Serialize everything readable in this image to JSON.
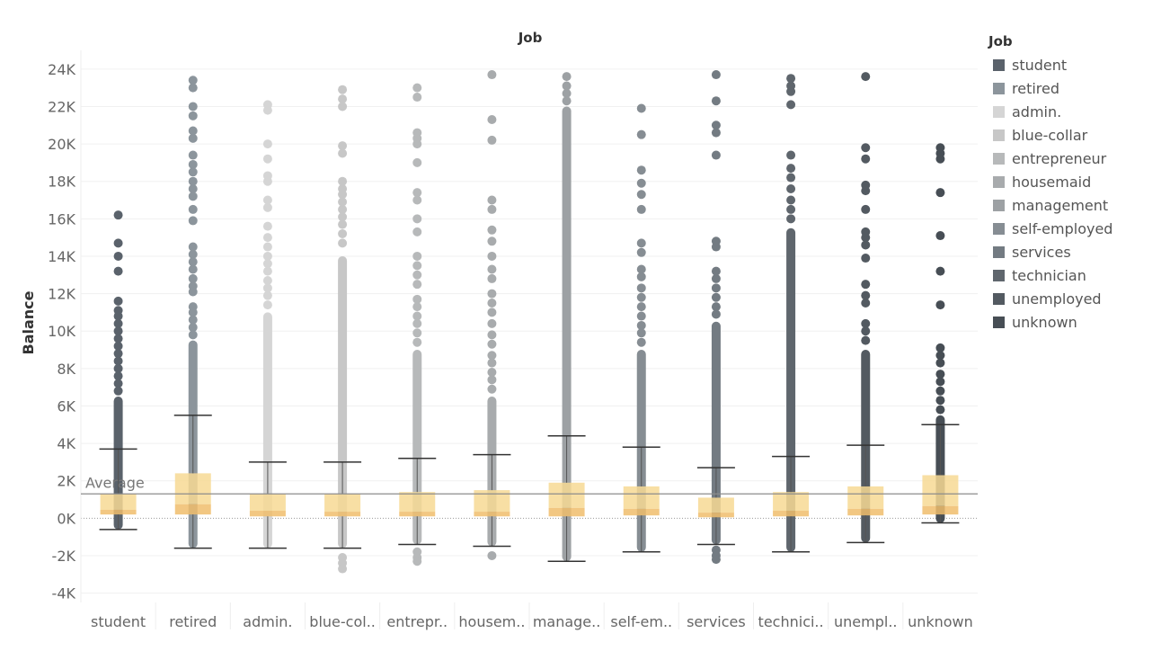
{
  "chart_data": {
    "type": "boxplot",
    "title": "Job",
    "ylabel": "Balance",
    "ylim": [
      -4500,
      25000
    ],
    "yticks": [
      -4000,
      -2000,
      0,
      2000,
      4000,
      6000,
      8000,
      10000,
      12000,
      14000,
      16000,
      18000,
      20000,
      22000,
      24000
    ],
    "ytick_labels": [
      "-4K",
      "-2K",
      "0K",
      "2K",
      "4K",
      "6K",
      "8K",
      "10K",
      "12K",
      "14K",
      "16K",
      "18K",
      "20K",
      "22K",
      "24K"
    ],
    "grid": true,
    "reference_line": {
      "label": "Average",
      "value": 1300
    },
    "legend_title": "Job",
    "legend_position": "right",
    "categories": [
      {
        "name": "student",
        "axis_label": "student",
        "color": "#5a626b",
        "whisker_low": -600,
        "q1": 200,
        "median": 450,
        "q3": 1300,
        "whisker_high": 3700,
        "dense_outliers_to": 6500,
        "outliers": [
          6800,
          7200,
          7600,
          8000,
          8400,
          8800,
          9200,
          9600,
          10000,
          10400,
          10800,
          11100,
          11600,
          13200,
          14000,
          14700,
          16200
        ]
      },
      {
        "name": "retired",
        "axis_label": "retired",
        "color": "#8c959c",
        "whisker_low": -1600,
        "q1": 200,
        "median": 750,
        "q3": 2400,
        "whisker_high": 5500,
        "dense_outliers_to": 9500,
        "outliers": [
          9800,
          10200,
          10600,
          11000,
          11300,
          12100,
          12400,
          12800,
          13300,
          13700,
          14100,
          14500,
          15900,
          16500,
          17200,
          17600,
          18000,
          18500,
          18900,
          19400,
          20300,
          20700,
          21500,
          22000,
          23000,
          23400
        ]
      },
      {
        "name": "admin.",
        "axis_label": "admin.",
        "color": "#d5d5d5",
        "whisker_low": -1600,
        "q1": 100,
        "median": 400,
        "q3": 1300,
        "whisker_high": 3000,
        "dense_outliers_to": 11000,
        "outliers": [
          11400,
          11900,
          12300,
          12700,
          13200,
          13600,
          14000,
          14500,
          15000,
          15600,
          16600,
          17000,
          18000,
          18300,
          19200,
          20000,
          21800,
          22100
        ]
      },
      {
        "name": "blue-collar",
        "axis_label": "blue-col..",
        "color": "#c7c7c7",
        "whisker_low": -1600,
        "q1": 100,
        "median": 350,
        "q3": 1300,
        "whisker_high": 3000,
        "dense_outliers_to": 14000,
        "outliers": [
          14700,
          15200,
          15700,
          16100,
          16500,
          16900,
          17300,
          17600,
          18000,
          19500,
          19900,
          22000,
          22400,
          22900,
          -2100,
          -2400,
          -2700
        ]
      },
      {
        "name": "entrepreneur",
        "axis_label": "entrepr..",
        "color": "#b7b9ba",
        "whisker_low": -1400,
        "q1": 100,
        "median": 350,
        "q3": 1400,
        "whisker_high": 3200,
        "dense_outliers_to": 9000,
        "outliers": [
          9400,
          9900,
          10400,
          10800,
          11300,
          11700,
          12500,
          13000,
          13500,
          14000,
          15300,
          16000,
          17000,
          17400,
          19000,
          20000,
          20300,
          20600,
          22500,
          23000,
          -1800,
          -2100,
          -2300
        ]
      },
      {
        "name": "housemaid",
        "axis_label": "housem..",
        "color": "#a8abad",
        "whisker_low": -1500,
        "q1": 100,
        "median": 350,
        "q3": 1500,
        "whisker_high": 3400,
        "dense_outliers_to": 6500,
        "outliers": [
          6900,
          7400,
          7800,
          8300,
          8700,
          9300,
          9800,
          10400,
          11000,
          11500,
          12000,
          12800,
          13300,
          14000,
          14800,
          15400,
          16500,
          17000,
          20200,
          21300,
          23700,
          -2000
        ]
      },
      {
        "name": "management",
        "axis_label": "manage..",
        "color": "#9da1a4",
        "whisker_low": -2300,
        "q1": 100,
        "median": 550,
        "q3": 1900,
        "whisker_high": 4400,
        "dense_outliers_to": 22000,
        "outliers": [
          22300,
          22700,
          23100,
          23600
        ]
      },
      {
        "name": "self-employed",
        "axis_label": "self-em..",
        "color": "#868d93",
        "whisker_low": -1800,
        "q1": 150,
        "median": 500,
        "q3": 1700,
        "whisker_high": 3800,
        "dense_outliers_to": 9000,
        "outliers": [
          9400,
          9900,
          10300,
          10800,
          11300,
          11800,
          12300,
          12900,
          13300,
          14200,
          14700,
          16500,
          17300,
          17900,
          18600,
          20500,
          21900
        ]
      },
      {
        "name": "services",
        "axis_label": "services",
        "color": "#737b82",
        "whisker_low": -1400,
        "q1": 50,
        "median": 300,
        "q3": 1100,
        "whisker_high": 2700,
        "dense_outliers_to": 10500,
        "outliers": [
          10900,
          11300,
          11800,
          12300,
          12800,
          13200,
          14500,
          14800,
          19400,
          20600,
          21000,
          22300,
          23700,
          -1700,
          -2000,
          -2200
        ]
      },
      {
        "name": "technician",
        "axis_label": "technici..",
        "color": "#5f666d",
        "whisker_low": -1800,
        "q1": 100,
        "median": 400,
        "q3": 1400,
        "whisker_high": 3300,
        "dense_outliers_to": 15500,
        "outliers": [
          16000,
          16500,
          17000,
          17600,
          18200,
          18700,
          19400,
          22100,
          22800,
          23100,
          23500
        ]
      },
      {
        "name": "unemployed",
        "axis_label": "unempl..",
        "color": "#535a61",
        "whisker_low": -1300,
        "q1": 150,
        "median": 500,
        "q3": 1700,
        "whisker_high": 3900,
        "dense_outliers_to": 9000,
        "outliers": [
          9500,
          10000,
          10400,
          11500,
          11900,
          12500,
          13900,
          14600,
          15000,
          15300,
          16500,
          17500,
          17800,
          19200,
          19800,
          23600
        ]
      },
      {
        "name": "unknown",
        "axis_label": "unknown",
        "color": "#474e55",
        "whisker_low": -250,
        "q1": 200,
        "median": 650,
        "q3": 2300,
        "whisker_high": 5000,
        "dense_outliers_to": 5500,
        "outliers": [
          5800,
          6300,
          6800,
          7300,
          7700,
          8300,
          8700,
          9100,
          11400,
          13200,
          15100,
          17400,
          19200,
          19500,
          19800
        ]
      }
    ]
  }
}
